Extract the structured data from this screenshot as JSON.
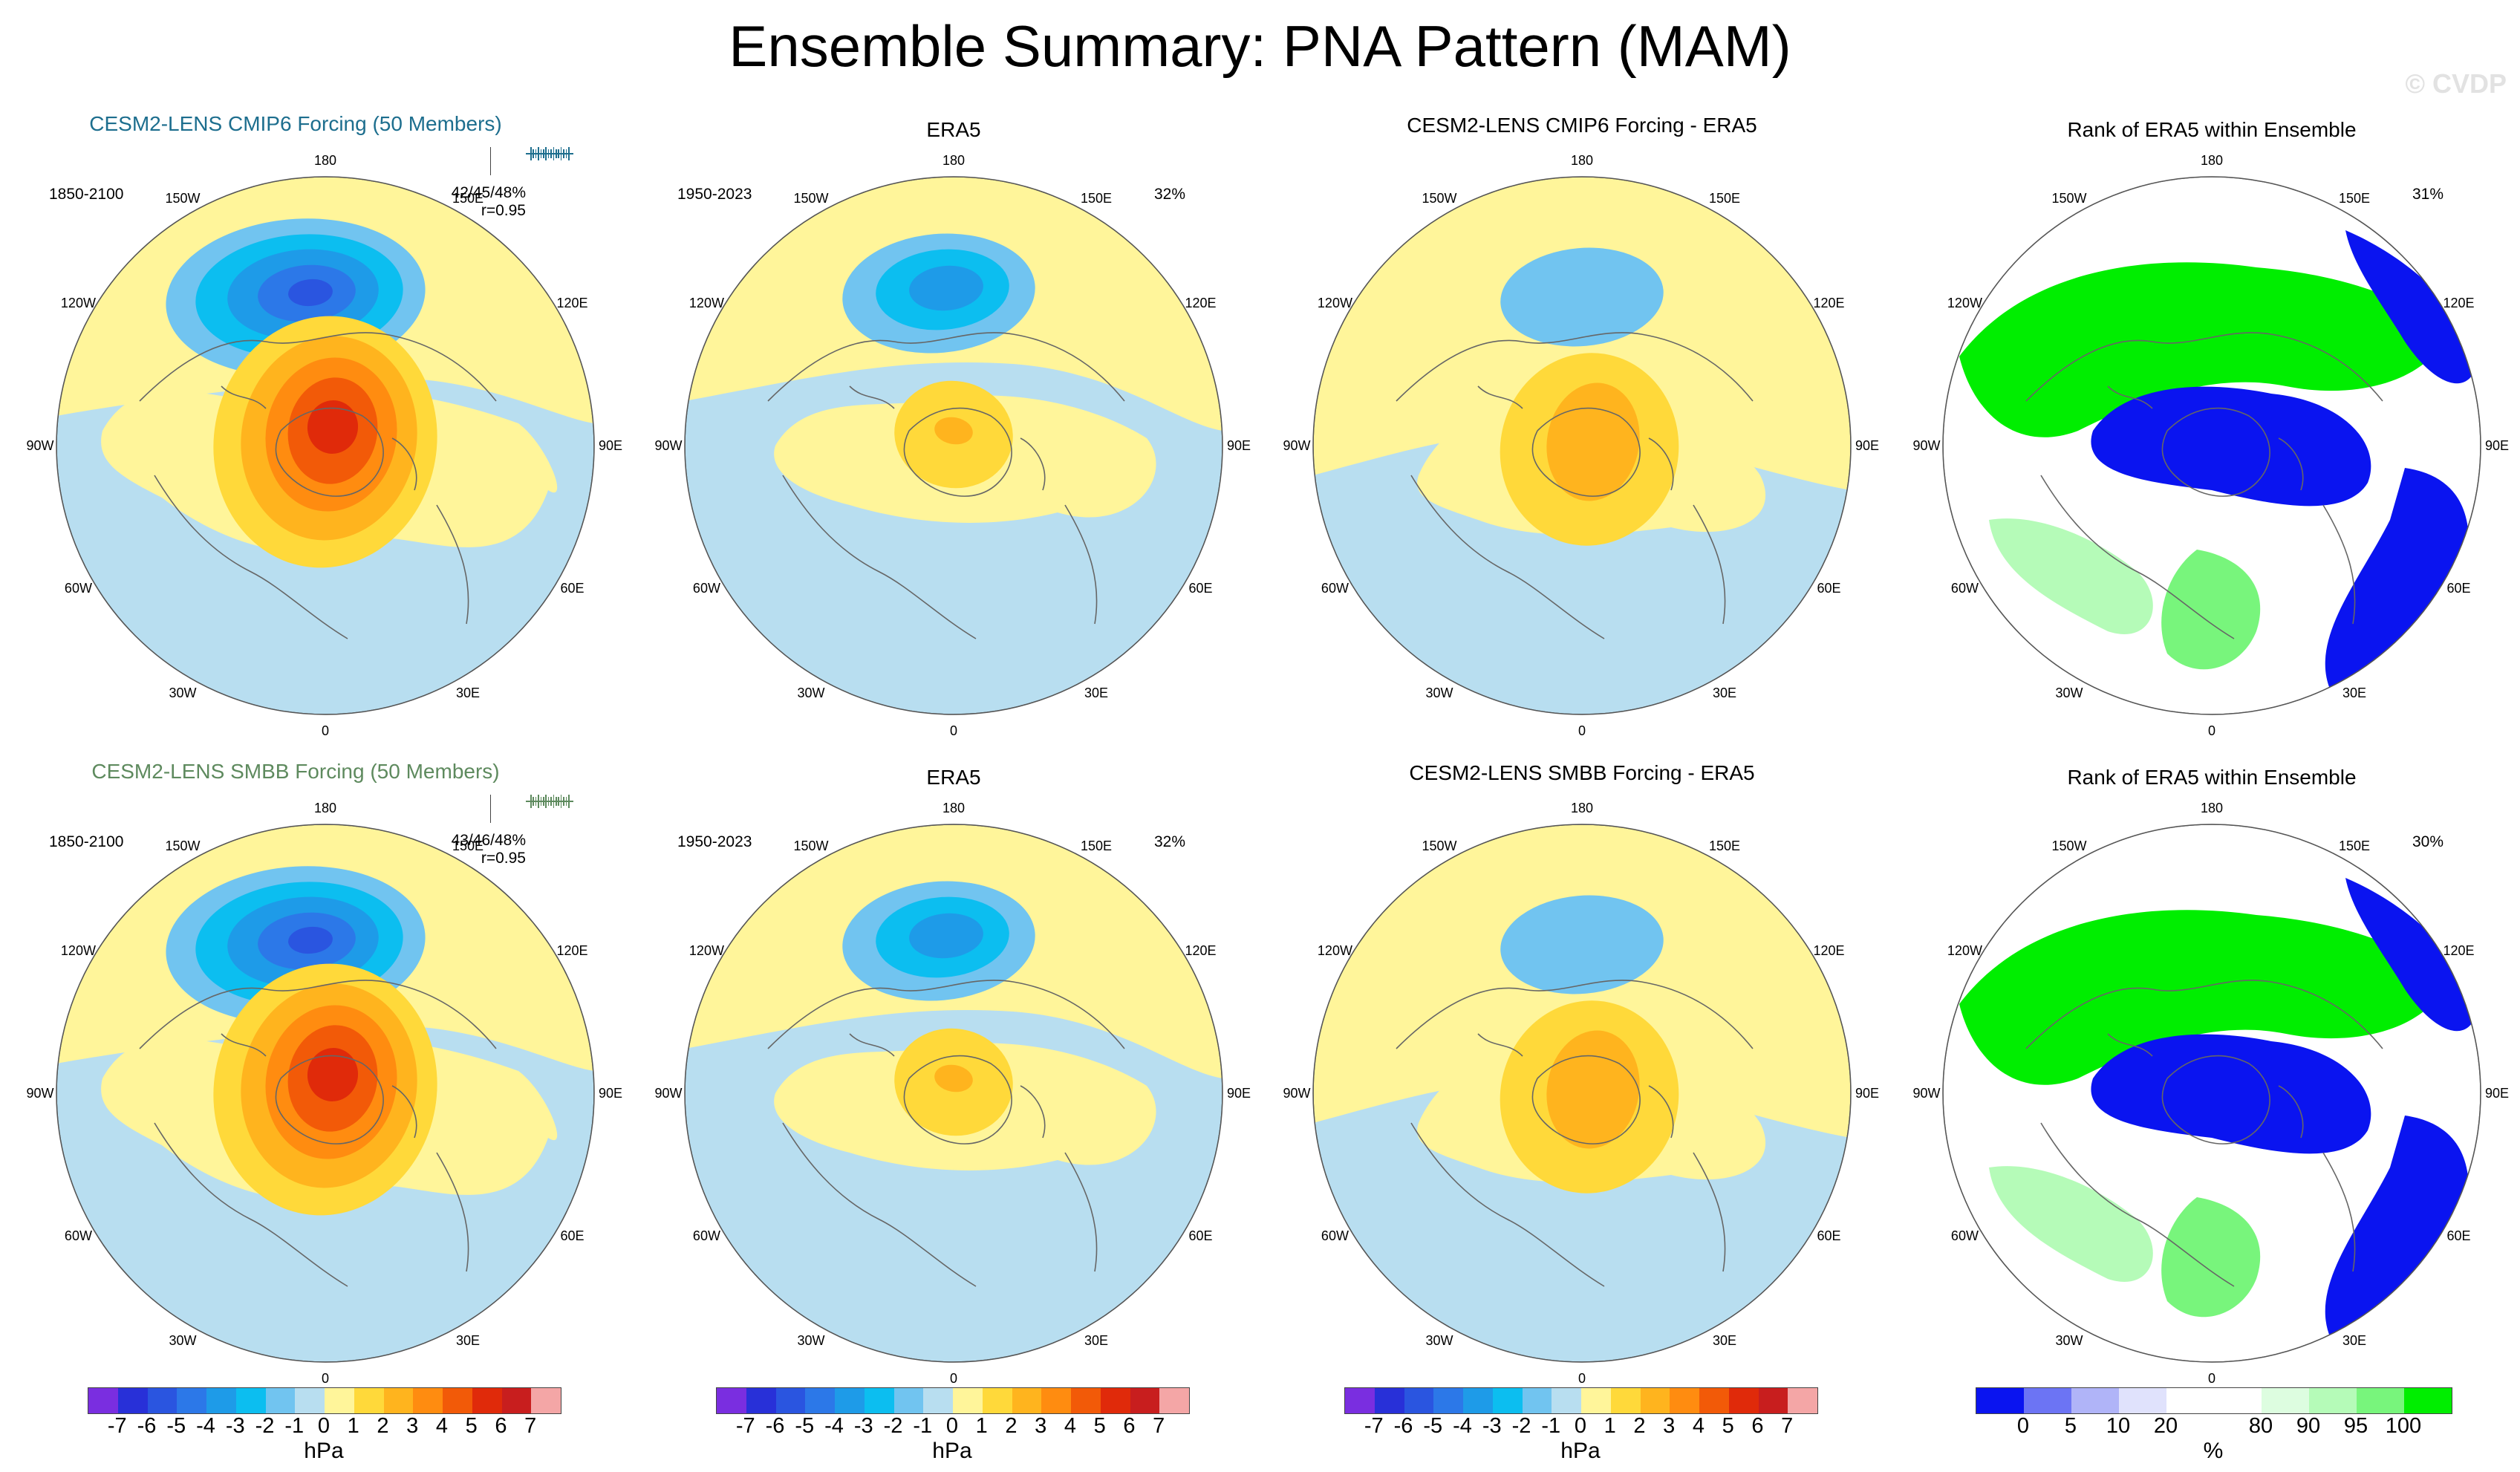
{
  "title": "Ensemble Summary: PNA Pattern (MAM)",
  "watermark": "© CVDP",
  "lon_labels": [
    "180",
    "150E",
    "120E",
    "90E",
    "60E",
    "30E",
    "0",
    "30W",
    "60W",
    "90W",
    "120W",
    "150W"
  ],
  "row1": {
    "model_title": "CESM2-LENS CMIP6 Forcing (50 Members)",
    "model_years": "1850-2100",
    "model_stats": "42/45/48%",
    "model_r": "r=0.95",
    "obs_title": "ERA5",
    "obs_years": "1950-2023",
    "obs_pct": "32%",
    "diff_title": "CESM2-LENS CMIP6 Forcing - ERA5",
    "rank_title": "Rank of ERA5 within Ensemble",
    "rank_pct": "31%"
  },
  "row2": {
    "model_title": "CESM2-LENS SMBB Forcing (50 Members)",
    "model_years": "1850-2100",
    "model_stats": "43/46/48%",
    "model_r": "r=0.95",
    "obs_title": "ERA5",
    "obs_years": "1950-2023",
    "obs_pct": "32%",
    "diff_title": "CESM2-LENS SMBB Forcing - ERA5",
    "rank_title": "Rank of ERA5 within Ensemble",
    "rank_pct": "30%"
  },
  "colorbar_hpa": {
    "ticks": [
      "-7",
      "-6",
      "-5",
      "-4",
      "-3",
      "-2",
      "-1",
      "0",
      "1",
      "2",
      "3",
      "4",
      "5",
      "6",
      "7"
    ],
    "colors": [
      "#7a2ee0",
      "#2830d8",
      "#2a55e0",
      "#2c78e8",
      "#1e9be8",
      "#0cbef0",
      "#71c4f0",
      "#b8def0",
      "#fff59a",
      "#ffd93a",
      "#ffb41e",
      "#ff8c10",
      "#f25a08",
      "#e02a0a",
      "#c81e1e",
      "#f4a6a6"
    ],
    "unit": "hPa"
  },
  "colorbar_rank": {
    "ticks": [
      "0",
      "5",
      "10",
      "20",
      "80",
      "90",
      "95",
      "100"
    ],
    "colors": [
      "#0a14f0",
      "#6c74f4",
      "#b0b4f8",
      "#e0e2fc",
      "#ffffff",
      "#ffffff",
      "#ddfde0",
      "#b5fbb8",
      "#78f57c",
      "#00ee00"
    ],
    "unit": "%"
  },
  "chart_data": [
    {
      "type": "heatmap",
      "panel": "row1-model",
      "title": "CESM2-LENS CMIP6 Forcing (50 Members)",
      "units": "hPa",
      "low_center_min": -6,
      "high_center_max": 6,
      "period": "1850-2100",
      "pct_explained": [
        42,
        45,
        48
      ],
      "pattern_correlation": 0.95
    },
    {
      "type": "heatmap",
      "panel": "row1-obs",
      "title": "ERA5",
      "units": "hPa",
      "low_center_min": -4,
      "high_center_max": 3,
      "period": "1950-2023",
      "pct_explained": 32
    },
    {
      "type": "heatmap",
      "panel": "row1-diff",
      "title": "CESM2-LENS CMIP6 Forcing - ERA5",
      "units": "hPa",
      "low_center_min": -2,
      "high_center_max": 3
    },
    {
      "type": "heatmap",
      "panel": "row1-rank",
      "title": "Rank of ERA5 within Ensemble",
      "units": "%",
      "pct": 31
    },
    {
      "type": "heatmap",
      "panel": "row2-model",
      "title": "CESM2-LENS SMBB Forcing (50 Members)",
      "units": "hPa",
      "low_center_min": -6,
      "high_center_max": 6,
      "period": "1850-2100",
      "pct_explained": [
        43,
        46,
        48
      ],
      "pattern_correlation": 0.95
    },
    {
      "type": "heatmap",
      "panel": "row2-obs",
      "title": "ERA5",
      "units": "hPa",
      "low_center_min": -4,
      "high_center_max": 3,
      "period": "1950-2023",
      "pct_explained": 32
    },
    {
      "type": "heatmap",
      "panel": "row2-diff",
      "title": "CESM2-LENS SMBB Forcing - ERA5",
      "units": "hPa",
      "low_center_min": -2,
      "high_center_max": 3
    },
    {
      "type": "heatmap",
      "panel": "row2-rank",
      "title": "Rank of ERA5 within Ensemble",
      "units": "%",
      "pct": 30
    }
  ]
}
